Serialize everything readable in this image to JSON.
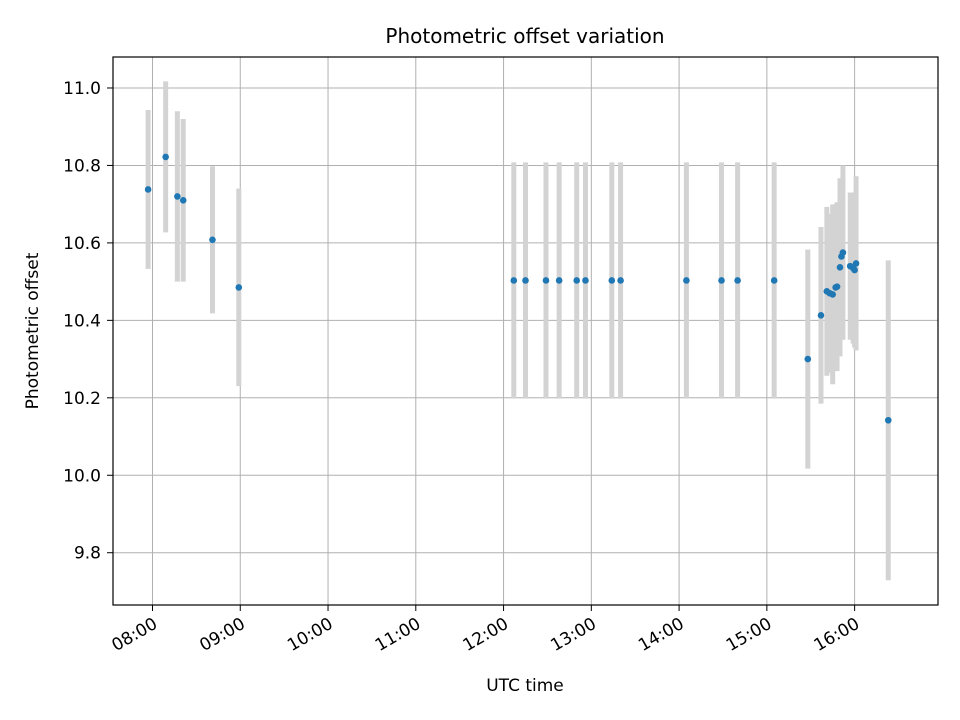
{
  "chart_data": {
    "type": "scatter",
    "title": "Photometric offset variation",
    "xlabel": "UTC time",
    "ylabel": "Photometric offset",
    "x_ticks": [
      "08:00",
      "09:00",
      "10:00",
      "11:00",
      "12:00",
      "13:00",
      "14:00",
      "15:00",
      "16:00"
    ],
    "y_ticks": [
      "9.8",
      "10.0",
      "10.2",
      "10.4",
      "10.6",
      "10.8",
      "11.0"
    ],
    "xlim": [
      "07:33",
      "16:57"
    ],
    "ylim": [
      9.665,
      11.08
    ],
    "grid": true,
    "colors": {
      "point": "#1f77b4",
      "errorbar": "#d3d3d3",
      "grid": "#b0b0b0"
    },
    "points": [
      {
        "x": "07:57",
        "y": 10.738,
        "err": 0.205
      },
      {
        "x": "08:09",
        "y": 10.822,
        "err": 0.195
      },
      {
        "x": "08:17",
        "y": 10.72,
        "err": 0.22
      },
      {
        "x": "08:21",
        "y": 10.71,
        "err": 0.21
      },
      {
        "x": "08:41",
        "y": 10.608,
        "err": 0.19
      },
      {
        "x": "08:59",
        "y": 10.485,
        "err": 0.255
      },
      {
        "x": "12:07",
        "y": 10.503,
        "err": 0.305
      },
      {
        "x": "12:15",
        "y": 10.503,
        "err": 0.305
      },
      {
        "x": "12:29",
        "y": 10.503,
        "err": 0.305
      },
      {
        "x": "12:38",
        "y": 10.503,
        "err": 0.305
      },
      {
        "x": "12:50",
        "y": 10.503,
        "err": 0.305
      },
      {
        "x": "12:56",
        "y": 10.503,
        "err": 0.305
      },
      {
        "x": "13:14",
        "y": 10.503,
        "err": 0.305
      },
      {
        "x": "13:20",
        "y": 10.503,
        "err": 0.305
      },
      {
        "x": "14:05",
        "y": 10.503,
        "err": 0.305
      },
      {
        "x": "14:29",
        "y": 10.503,
        "err": 0.305
      },
      {
        "x": "14:40",
        "y": 10.503,
        "err": 0.305
      },
      {
        "x": "15:05",
        "y": 10.503,
        "err": 0.305
      },
      {
        "x": "15:28",
        "y": 10.3,
        "err": 0.283
      },
      {
        "x": "15:37",
        "y": 10.413,
        "err": 0.228
      },
      {
        "x": "15:41",
        "y": 10.475,
        "err": 0.218
      },
      {
        "x": "15:43",
        "y": 10.47,
        "err": 0.205
      },
      {
        "x": "15:45",
        "y": 10.467,
        "err": 0.232
      },
      {
        "x": "15:47",
        "y": 10.485,
        "err": 0.215
      },
      {
        "x": "15:48",
        "y": 10.487,
        "err": 0.218
      },
      {
        "x": "15:50",
        "y": 10.537,
        "err": 0.23
      },
      {
        "x": "15:51",
        "y": 10.565,
        "err": 0.2
      },
      {
        "x": "15:52",
        "y": 10.575,
        "err": 0.225
      },
      {
        "x": "15:57",
        "y": 10.54,
        "err": 0.19
      },
      {
        "x": "15:59",
        "y": 10.535,
        "err": 0.195
      },
      {
        "x": "16:00",
        "y": 10.53,
        "err": 0.2
      },
      {
        "x": "16:01",
        "y": 10.547,
        "err": 0.225
      },
      {
        "x": "16:23",
        "y": 10.142,
        "err": 0.413
      }
    ]
  }
}
